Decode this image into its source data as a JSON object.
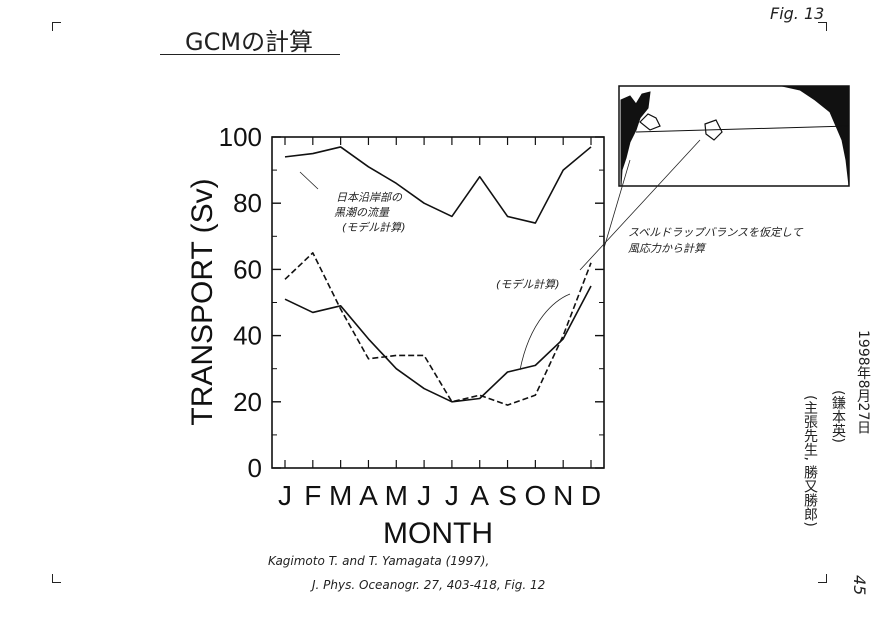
{
  "page": {
    "title": "GCMの計算",
    "fig_label": "Fig. 13",
    "date_note": "1998年8月27日",
    "author_note": "(鎌本英)",
    "author_note2": "(主張先生, 勝又勝郎)",
    "page_number": "45"
  },
  "citation": {
    "line1": "Kagimoto T. and T. Yamagata (1997),",
    "line2": "J. Phys. Oceanogr. 27, 403-418, Fig. 12"
  },
  "annotations": {
    "kuroshio_line1": "日本沿岸部の",
    "kuroshio_line2": "黒潮の流量",
    "kuroshio_line3": "(モデル計算)",
    "model": "(モデル計算)",
    "sverdrup_line1": "スベルドラップバランスを仮定して",
    "sverdrup_line2": "風応力から計算"
  },
  "chart_data": {
    "type": "line",
    "title": "",
    "xlabel": "MONTH",
    "ylabel": "TRANSPORT (Sv)",
    "ylim": [
      0,
      100
    ],
    "yticks": [
      0,
      20,
      40,
      60,
      80,
      100
    ],
    "categories": [
      "J",
      "F",
      "M",
      "A",
      "M",
      "J",
      "J",
      "A",
      "S",
      "O",
      "N",
      "D"
    ],
    "grid": false,
    "series": [
      {
        "name": "",
        "style": "solid",
        "values": [
          94,
          95,
          97,
          91,
          86,
          80,
          76,
          88,
          76,
          74,
          90,
          97
        ]
      },
      {
        "name": "",
        "style": "solid",
        "values": [
          51,
          47,
          49,
          39,
          30,
          24,
          20,
          21,
          29,
          31,
          39,
          55
        ]
      },
      {
        "name": "",
        "style": "dashed",
        "values": [
          57,
          65,
          48,
          33,
          34,
          34,
          20,
          22,
          19,
          22,
          40,
          62
        ]
      }
    ]
  }
}
